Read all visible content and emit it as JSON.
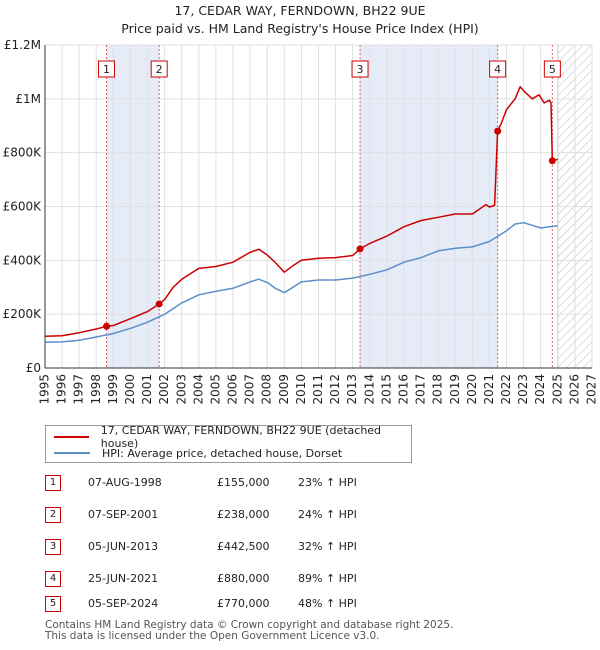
{
  "chart_data": {
    "type": "line",
    "title": "17, CEDAR WAY, FERNDOWN, BH22 9UE",
    "subtitle": "Price paid vs. HM Land Registry's House Price Index (HPI)",
    "xlim": [
      1995,
      2027
    ],
    "ylim": [
      0,
      1200000
    ],
    "x_ticks": [
      "1995",
      "1996",
      "1997",
      "1998",
      "1999",
      "2000",
      "2001",
      "2002",
      "2003",
      "2004",
      "2005",
      "2006",
      "2007",
      "2008",
      "2009",
      "2010",
      "2011",
      "2012",
      "2013",
      "2014",
      "2015",
      "2016",
      "2017",
      "2018",
      "2019",
      "2020",
      "2021",
      "2022",
      "2023",
      "2024",
      "2025",
      "2026",
      "2027"
    ],
    "y_ticks": [
      {
        "value": 0,
        "label": "£0"
      },
      {
        "value": 200000,
        "label": "£200K"
      },
      {
        "value": 400000,
        "label": "£400K"
      },
      {
        "value": 600000,
        "label": "£600K"
      },
      {
        "value": 800000,
        "label": "£800K"
      },
      {
        "value": 1000000,
        "label": "£1M"
      },
      {
        "value": 1200000,
        "label": "£1.2M"
      }
    ],
    "series": [
      {
        "name": "17, CEDAR WAY, FERNDOWN, BH22 9UE (detached house)",
        "color": "#cc0000",
        "points": [
          [
            1995.0,
            118000
          ],
          [
            1996.0,
            120000
          ],
          [
            1997.0,
            131000
          ],
          [
            1998.0,
            145000
          ],
          [
            1998.6,
            155000
          ],
          [
            1999.0,
            158000
          ],
          [
            2000.0,
            183000
          ],
          [
            2001.0,
            210000
          ],
          [
            2001.68,
            238000
          ],
          [
            2002.0,
            255000
          ],
          [
            2002.5,
            300000
          ],
          [
            2003.0,
            330000
          ],
          [
            2003.5,
            350000
          ],
          [
            2004.0,
            370000
          ],
          [
            2005.0,
            377000
          ],
          [
            2006.0,
            393000
          ],
          [
            2007.0,
            430000
          ],
          [
            2007.5,
            441000
          ],
          [
            2008.0,
            420000
          ],
          [
            2008.5,
            390000
          ],
          [
            2009.0,
            356000
          ],
          [
            2009.5,
            380000
          ],
          [
            2010.0,
            400000
          ],
          [
            2011.0,
            408000
          ],
          [
            2012.0,
            410000
          ],
          [
            2013.0,
            418000
          ],
          [
            2013.43,
            442500
          ],
          [
            2014.0,
            463000
          ],
          [
            2015.0,
            490000
          ],
          [
            2016.0,
            525000
          ],
          [
            2017.0,
            548000
          ],
          [
            2018.0,
            560000
          ],
          [
            2019.0,
            572000
          ],
          [
            2020.0,
            572000
          ],
          [
            2020.8,
            607000
          ],
          [
            2021.0,
            598000
          ],
          [
            2021.3,
            604000
          ],
          [
            2021.48,
            880000
          ],
          [
            2021.7,
            910000
          ],
          [
            2022.0,
            960000
          ],
          [
            2022.5,
            1000000
          ],
          [
            2022.8,
            1045000
          ],
          [
            2023.0,
            1030000
          ],
          [
            2023.5,
            1000000
          ],
          [
            2023.9,
            1015000
          ],
          [
            2024.2,
            985000
          ],
          [
            2024.5,
            995000
          ],
          [
            2024.6,
            985000
          ],
          [
            2024.68,
            770000
          ],
          [
            2025.0,
            775000
          ]
        ]
      },
      {
        "name": "HPI: Average price, detached house, Dorset",
        "color": "#5b8fc9",
        "points": [
          [
            1995.0,
            96000
          ],
          [
            1996.0,
            97000
          ],
          [
            1997.0,
            103000
          ],
          [
            1998.0,
            115000
          ],
          [
            1999.0,
            128000
          ],
          [
            2000.0,
            147000
          ],
          [
            2001.0,
            170000
          ],
          [
            2002.0,
            200000
          ],
          [
            2003.0,
            242000
          ],
          [
            2004.0,
            272000
          ],
          [
            2005.0,
            285000
          ],
          [
            2006.0,
            296000
          ],
          [
            2007.0,
            320000
          ],
          [
            2007.5,
            330000
          ],
          [
            2008.0,
            318000
          ],
          [
            2008.5,
            295000
          ],
          [
            2009.0,
            280000
          ],
          [
            2009.5,
            300000
          ],
          [
            2010.0,
            320000
          ],
          [
            2011.0,
            327000
          ],
          [
            2012.0,
            327000
          ],
          [
            2013.0,
            334000
          ],
          [
            2014.0,
            348000
          ],
          [
            2015.0,
            365000
          ],
          [
            2016.0,
            393000
          ],
          [
            2017.0,
            410000
          ],
          [
            2018.0,
            435000
          ],
          [
            2019.0,
            445000
          ],
          [
            2020.0,
            450000
          ],
          [
            2021.0,
            470000
          ],
          [
            2021.5,
            490000
          ],
          [
            2022.0,
            510000
          ],
          [
            2022.5,
            535000
          ],
          [
            2023.0,
            540000
          ],
          [
            2023.5,
            530000
          ],
          [
            2024.0,
            520000
          ],
          [
            2024.5,
            525000
          ],
          [
            2025.0,
            528000
          ]
        ]
      }
    ],
    "sales": [
      {
        "label": "1",
        "x": 1998.6,
        "price": 155000
      },
      {
        "label": "2",
        "x": 2001.68,
        "price": 238000
      },
      {
        "label": "3",
        "x": 2013.43,
        "price": 442500
      },
      {
        "label": "4",
        "x": 2021.48,
        "price": 880000
      },
      {
        "label": "5",
        "x": 2024.68,
        "price": 770000
      }
    ],
    "shaded_periods": [
      [
        1998.6,
        2001.68
      ],
      [
        2013.43,
        2021.48
      ]
    ],
    "forecast_start": 2025.0
  },
  "legend": {
    "property": "17, CEDAR WAY, FERNDOWN, BH22 9UE (detached house)",
    "hpi": "HPI: Average price, detached house, Dorset"
  },
  "sales_table": [
    {
      "n": "1",
      "date": "07-AUG-1998",
      "price": "£155,000",
      "hpi": "23% ↑ HPI"
    },
    {
      "n": "2",
      "date": "07-SEP-2001",
      "price": "£238,000",
      "hpi": "24% ↑ HPI"
    },
    {
      "n": "3",
      "date": "05-JUN-2013",
      "price": "£442,500",
      "hpi": "32% ↑ HPI"
    },
    {
      "n": "4",
      "date": "25-JUN-2021",
      "price": "£880,000",
      "hpi": "89% ↑ HPI"
    },
    {
      "n": "5",
      "date": "05-SEP-2024",
      "price": "£770,000",
      "hpi": "48% ↑ HPI"
    }
  ],
  "footer": {
    "line1": "Contains HM Land Registry data © Crown copyright and database right 2025.",
    "line2": "This data is licensed under the Open Government Licence v3.0."
  }
}
